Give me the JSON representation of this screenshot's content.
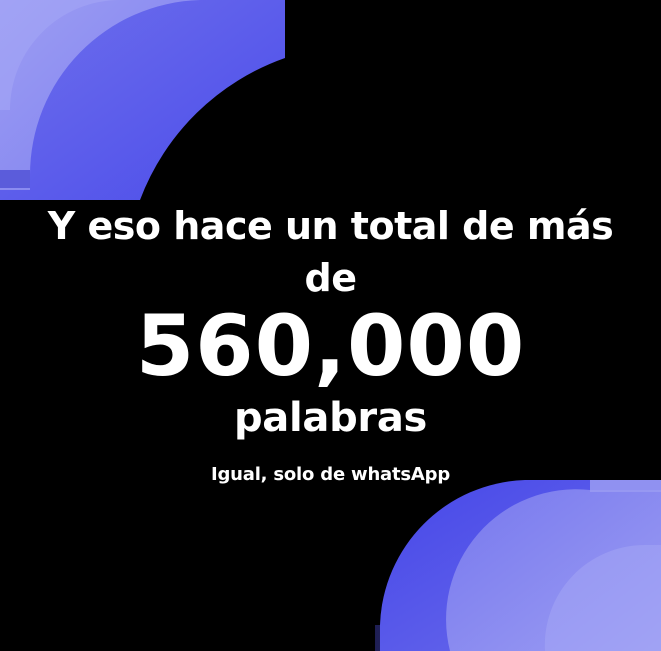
{
  "colors": {
    "background": "#000000",
    "text": "#ffffff",
    "accent_light": "#8B8CF0",
    "accent_mid": "#7576EE",
    "accent_deep": "#4A4BEA",
    "accent_shadow": "#2A2A7A"
  },
  "headline": {
    "line1": "Y eso hace un total de más",
    "line2": "de"
  },
  "stat": {
    "number": "560,000",
    "unit": "palabras"
  },
  "footnote": "Igual, solo de whatsApp",
  "decorations": [
    {
      "name": "top-left-quarter-arcs",
      "icon": "quarter-arc-shape"
    },
    {
      "name": "bottom-right-quarter-arcs",
      "icon": "quarter-arc-shape"
    }
  ]
}
